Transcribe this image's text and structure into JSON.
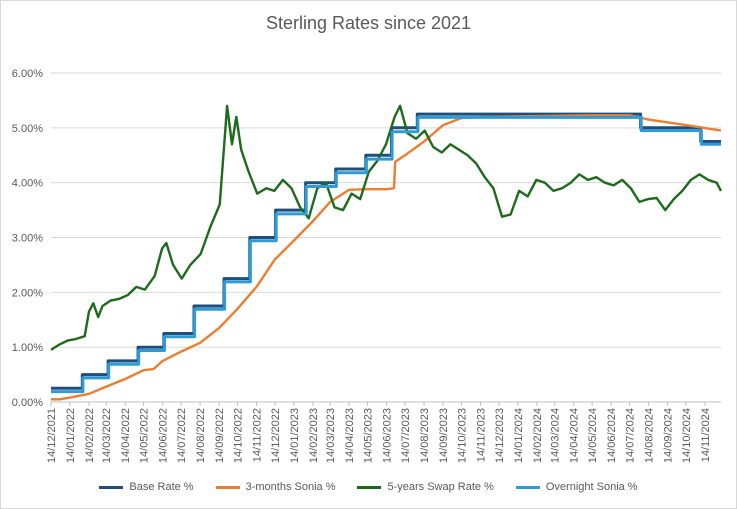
{
  "chart_data": {
    "type": "line",
    "title": "Sterling Rates since 2021",
    "xlabel": "",
    "ylabel": "",
    "ylim": [
      0,
      6
    ],
    "yticks": [
      "0.00%",
      "1.00%",
      "2.00%",
      "3.00%",
      "4.00%",
      "5.00%",
      "6.00%"
    ],
    "x_start": "2021-12-14",
    "x_end": "2024-12-10",
    "xticks": [
      "14/12/2021",
      "14/01/2022",
      "14/02/2022",
      "14/03/2022",
      "14/04/2022",
      "14/05/2022",
      "14/06/2022",
      "14/07/2022",
      "14/08/2022",
      "14/09/2022",
      "14/10/2022",
      "14/11/2022",
      "14/12/2022",
      "14/01/2023",
      "14/02/2023",
      "14/03/2023",
      "14/04/2023",
      "14/05/2023",
      "14/06/2023",
      "14/07/2023",
      "14/08/2023",
      "14/09/2023",
      "14/10/2023",
      "14/11/2023",
      "14/12/2023",
      "14/01/2024",
      "14/02/2024",
      "14/03/2024",
      "14/04/2024",
      "14/05/2024",
      "14/06/2024",
      "14/07/2024",
      "14/08/2024",
      "14/09/2024",
      "14/10/2024",
      "14/11/2024"
    ],
    "grid": "horizontal",
    "legend_position": "bottom",
    "series": [
      {
        "name": "Base Rate %",
        "color": "#1f4e79",
        "step": true,
        "points": [
          [
            "2021-12-14",
            0.25
          ],
          [
            "2022-02-03",
            0.5
          ],
          [
            "2022-03-17",
            0.75
          ],
          [
            "2022-05-05",
            1.0
          ],
          [
            "2022-06-16",
            1.25
          ],
          [
            "2022-08-04",
            1.75
          ],
          [
            "2022-09-22",
            2.25
          ],
          [
            "2022-11-03",
            3.0
          ],
          [
            "2022-12-15",
            3.5
          ],
          [
            "2023-02-02",
            4.0
          ],
          [
            "2023-03-23",
            4.25
          ],
          [
            "2023-05-11",
            4.5
          ],
          [
            "2023-06-22",
            5.0
          ],
          [
            "2023-08-03",
            5.25
          ],
          [
            "2024-08-01",
            5.0
          ],
          [
            "2024-11-07",
            4.75
          ],
          [
            "2024-12-10",
            4.75
          ]
        ]
      },
      {
        "name": "3-months Sonia %",
        "color": "#ed7d31",
        "step": false,
        "points": [
          [
            "2021-12-14",
            0.05
          ],
          [
            "2021-12-28",
            0.05
          ],
          [
            "2022-01-14",
            0.08
          ],
          [
            "2022-02-14",
            0.15
          ],
          [
            "2022-03-14",
            0.28
          ],
          [
            "2022-04-14",
            0.42
          ],
          [
            "2022-05-14",
            0.58
          ],
          [
            "2022-05-30",
            0.6
          ],
          [
            "2022-06-14",
            0.75
          ],
          [
            "2022-07-14",
            0.92
          ],
          [
            "2022-08-14",
            1.08
          ],
          [
            "2022-09-14",
            1.35
          ],
          [
            "2022-10-14",
            1.7
          ],
          [
            "2022-11-14",
            2.1
          ],
          [
            "2022-12-14",
            2.6
          ],
          [
            "2023-01-10",
            2.9
          ],
          [
            "2023-02-14",
            3.3
          ],
          [
            "2023-03-14",
            3.65
          ],
          [
            "2023-04-14",
            3.87
          ],
          [
            "2023-05-14",
            3.88
          ],
          [
            "2023-06-14",
            3.88
          ],
          [
            "2023-06-26",
            3.9
          ],
          [
            "2023-06-28",
            4.38
          ],
          [
            "2023-07-14",
            4.5
          ],
          [
            "2023-08-14",
            4.75
          ],
          [
            "2023-09-14",
            5.05
          ],
          [
            "2023-10-14",
            5.18
          ],
          [
            "2023-11-14",
            5.2
          ],
          [
            "2024-01-14",
            5.21
          ],
          [
            "2024-03-14",
            5.22
          ],
          [
            "2024-05-14",
            5.23
          ],
          [
            "2024-07-14",
            5.23
          ],
          [
            "2024-08-14",
            5.15
          ],
          [
            "2024-10-14",
            5.05
          ],
          [
            "2024-12-10",
            4.95
          ]
        ]
      },
      {
        "name": "5-years Swap Rate %",
        "color": "#1e6b1e",
        "step": false,
        "points": [
          [
            "2021-12-14",
            0.95
          ],
          [
            "2021-12-28",
            1.05
          ],
          [
            "2022-01-10",
            1.12
          ],
          [
            "2022-01-24",
            1.15
          ],
          [
            "2022-02-07",
            1.2
          ],
          [
            "2022-02-14",
            1.65
          ],
          [
            "2022-02-21",
            1.8
          ],
          [
            "2022-03-01",
            1.55
          ],
          [
            "2022-03-08",
            1.75
          ],
          [
            "2022-03-21",
            1.85
          ],
          [
            "2022-04-04",
            1.88
          ],
          [
            "2022-04-18",
            1.95
          ],
          [
            "2022-05-02",
            2.1
          ],
          [
            "2022-05-16",
            2.05
          ],
          [
            "2022-06-01",
            2.3
          ],
          [
            "2022-06-13",
            2.8
          ],
          [
            "2022-06-20",
            2.9
          ],
          [
            "2022-07-01",
            2.5
          ],
          [
            "2022-07-15",
            2.25
          ],
          [
            "2022-07-29",
            2.5
          ],
          [
            "2022-08-15",
            2.7
          ],
          [
            "2022-08-31",
            3.2
          ],
          [
            "2022-09-15",
            3.6
          ],
          [
            "2022-09-27",
            5.4
          ],
          [
            "2022-10-05",
            4.7
          ],
          [
            "2022-10-12",
            5.2
          ],
          [
            "2022-10-20",
            4.6
          ],
          [
            "2022-11-01",
            4.2
          ],
          [
            "2022-11-15",
            3.8
          ],
          [
            "2022-11-30",
            3.9
          ],
          [
            "2022-12-13",
            3.85
          ],
          [
            "2022-12-27",
            4.05
          ],
          [
            "2023-01-10",
            3.9
          ],
          [
            "2023-01-24",
            3.55
          ],
          [
            "2023-02-07",
            3.35
          ],
          [
            "2023-02-21",
            3.9
          ],
          [
            "2023-03-07",
            4.0
          ],
          [
            "2023-03-21",
            3.55
          ],
          [
            "2023-04-04",
            3.5
          ],
          [
            "2023-04-18",
            3.8
          ],
          [
            "2023-05-02",
            3.7
          ],
          [
            "2023-05-16",
            4.2
          ],
          [
            "2023-05-30",
            4.4
          ],
          [
            "2023-06-13",
            4.7
          ],
          [
            "2023-06-27",
            5.2
          ],
          [
            "2023-07-06",
            5.4
          ],
          [
            "2023-07-18",
            4.9
          ],
          [
            "2023-08-01",
            4.8
          ],
          [
            "2023-08-15",
            4.95
          ],
          [
            "2023-08-29",
            4.65
          ],
          [
            "2023-09-12",
            4.55
          ],
          [
            "2023-09-26",
            4.7
          ],
          [
            "2023-10-10",
            4.6
          ],
          [
            "2023-10-24",
            4.5
          ],
          [
            "2023-11-07",
            4.35
          ],
          [
            "2023-11-21",
            4.1
          ],
          [
            "2023-12-05",
            3.9
          ],
          [
            "2023-12-19",
            3.38
          ],
          [
            "2024-01-02",
            3.42
          ],
          [
            "2024-01-16",
            3.85
          ],
          [
            "2024-01-30",
            3.75
          ],
          [
            "2024-02-13",
            4.05
          ],
          [
            "2024-02-27",
            4.0
          ],
          [
            "2024-03-12",
            3.85
          ],
          [
            "2024-03-26",
            3.9
          ],
          [
            "2024-04-09",
            4.0
          ],
          [
            "2024-04-23",
            4.15
          ],
          [
            "2024-05-07",
            4.05
          ],
          [
            "2024-05-21",
            4.1
          ],
          [
            "2024-06-04",
            4.0
          ],
          [
            "2024-06-18",
            3.95
          ],
          [
            "2024-07-02",
            4.05
          ],
          [
            "2024-07-16",
            3.9
          ],
          [
            "2024-07-30",
            3.65
          ],
          [
            "2024-08-13",
            3.7
          ],
          [
            "2024-08-27",
            3.72
          ],
          [
            "2024-09-10",
            3.5
          ],
          [
            "2024-09-24",
            3.7
          ],
          [
            "2024-10-08",
            3.85
          ],
          [
            "2024-10-22",
            4.05
          ],
          [
            "2024-11-05",
            4.15
          ],
          [
            "2024-11-19",
            4.05
          ],
          [
            "2024-12-03",
            4.0
          ],
          [
            "2024-12-10",
            3.85
          ]
        ]
      },
      {
        "name": "Overnight Sonia %",
        "color": "#2e9bd6",
        "step": true,
        "points": [
          [
            "2021-12-14",
            0.19
          ],
          [
            "2022-02-04",
            0.44
          ],
          [
            "2022-03-18",
            0.69
          ],
          [
            "2022-05-06",
            0.94
          ],
          [
            "2022-06-17",
            1.19
          ],
          [
            "2022-08-05",
            1.69
          ],
          [
            "2022-09-23",
            2.19
          ],
          [
            "2022-11-04",
            2.94
          ],
          [
            "2022-12-16",
            3.43
          ],
          [
            "2023-02-03",
            3.93
          ],
          [
            "2023-03-24",
            4.18
          ],
          [
            "2023-05-12",
            4.43
          ],
          [
            "2023-06-23",
            4.93
          ],
          [
            "2023-08-04",
            5.19
          ],
          [
            "2024-08-02",
            4.95
          ],
          [
            "2024-11-08",
            4.7
          ],
          [
            "2024-12-10",
            4.7
          ]
        ]
      }
    ]
  }
}
